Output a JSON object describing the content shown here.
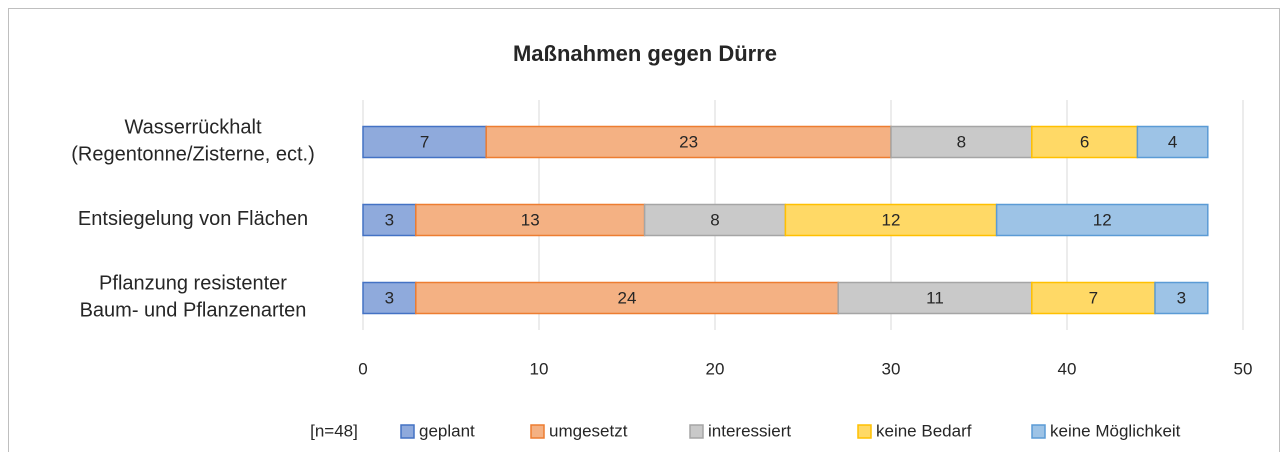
{
  "chart_data": {
    "type": "stacked_barh",
    "title": "Maßnahmen gegen Dürre",
    "categories": [
      "Wasserrückhalt\n(Regentonne/Zisterne, ect.)",
      "Entsiegelung von Flächen",
      "Pflanzung resistenter\nBaum- und Pflanzenarten"
    ],
    "series": [
      {
        "name": "geplant",
        "color": "#8faadc",
        "edgecolor": "#4472c4",
        "values": [
          7,
          3,
          3
        ]
      },
      {
        "name": "umgesetzt",
        "color": "#f4b183",
        "edgecolor": "#ed7d31",
        "values": [
          23,
          13,
          24
        ]
      },
      {
        "name": "interessiert",
        "color": "#c9c9c9",
        "edgecolor": "#a5a5a5",
        "values": [
          8,
          8,
          11
        ]
      },
      {
        "name": "keine Bedarf",
        "color": "#ffd966",
        "edgecolor": "#ffc000",
        "values": [
          6,
          12,
          7
        ]
      },
      {
        "name": "keine Möglichkeit",
        "color": "#9dc3e6",
        "edgecolor": "#5b9bd5",
        "values": [
          4,
          12,
          3
        ]
      }
    ],
    "xlim": [
      0,
      50
    ],
    "xticks": [
      0,
      10,
      20,
      30,
      40,
      50
    ],
    "grid": true,
    "annotation": "[n=48]",
    "legend": "bottom"
  }
}
